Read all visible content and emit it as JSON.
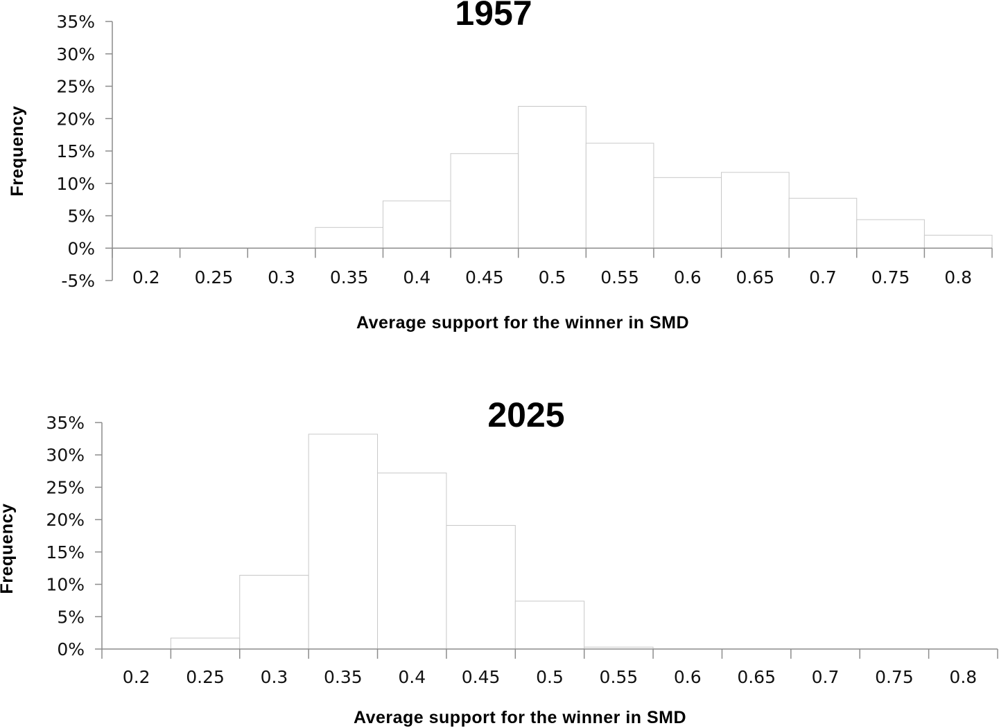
{
  "chart_data": [
    {
      "type": "bar",
      "title": "1957",
      "xlabel": "Average support for the winner in SMD",
      "ylabel": "Frequency",
      "categories": [
        "0.2",
        "0.25",
        "0.3",
        "0.35",
        "0.4",
        "0.45",
        "0.5",
        "0.55",
        "0.6",
        "0.65",
        "0.7",
        "0.75",
        "0.8"
      ],
      "values": [
        0,
        0,
        0,
        3.2,
        7.3,
        14.6,
        21.9,
        16.2,
        10.9,
        11.7,
        7.7,
        4.4,
        2.0
      ],
      "ylim": [
        -5,
        35
      ],
      "yticks": [
        "-5%",
        "0%",
        "5%",
        "10%",
        "15%",
        "20%",
        "25%",
        "30%",
        "35%"
      ],
      "grid": false,
      "legend": "none"
    },
    {
      "type": "bar",
      "title": "2025",
      "xlabel": "Average support for the winner in SMD",
      "ylabel": "Frequency",
      "categories": [
        "0.2",
        "0.25",
        "0.3",
        "0.35",
        "0.4",
        "0.45",
        "0.5",
        "0.55",
        "0.6",
        "0.65",
        "0.7",
        "0.75",
        "0.8"
      ],
      "values": [
        0,
        1.7,
        11.4,
        33.2,
        27.2,
        19.1,
        7.4,
        0.3,
        0,
        0,
        0,
        0,
        0
      ],
      "ylim": [
        0,
        35
      ],
      "yticks": [
        "0%",
        "5%",
        "10%",
        "15%",
        "20%",
        "25%",
        "30%",
        "35%"
      ],
      "grid": false,
      "legend": "none"
    }
  ]
}
